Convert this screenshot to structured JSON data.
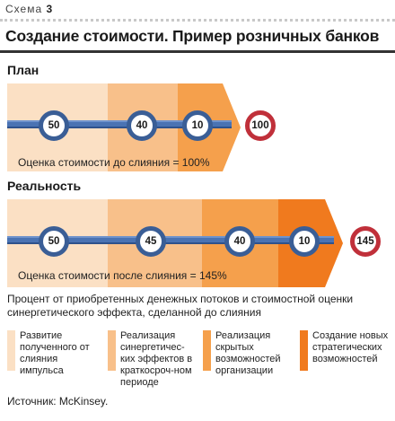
{
  "header": {
    "scheme_word": "Схема",
    "scheme_number": "3",
    "title": "Создание стоимости. Пример розничных банков"
  },
  "plan": {
    "label": "План",
    "nodes": [
      "50",
      "40",
      "10"
    ],
    "end_value": "100",
    "valuation": "Оценка стоимости до слияния = 100%"
  },
  "reality": {
    "label": "Реальность",
    "nodes": [
      "50",
      "45",
      "40",
      "10"
    ],
    "end_value": "145",
    "valuation": "Оценка стоимости после слияния = 145%"
  },
  "description": "Процент от приобретенных денежных потоков и стоимостной оценки синергетического эффекта, сделанной до слияния",
  "legend": [
    {
      "text": "Развитие полученного от слияния импульса",
      "color": "#fbe0c4"
    },
    {
      "text": "Реализация синергетичес-ких эффектов в краткосроч-ном периоде",
      "color": "#f8c08a"
    },
    {
      "text": "Реализация скрытых возможностей организации",
      "color": "#f5a04c"
    },
    {
      "text": "Создание новых стратегических возможностей",
      "color": "#f07a1e"
    }
  ],
  "source": "Источник: McKinsey.",
  "colors": {
    "band1": "#fbe0c4",
    "band2": "#f8c08a",
    "band3": "#f5a04c",
    "band4": "#f07a1e",
    "node_ring": "#3a5e96",
    "line": "#4a73b3",
    "end_ring": "#c0303a"
  }
}
